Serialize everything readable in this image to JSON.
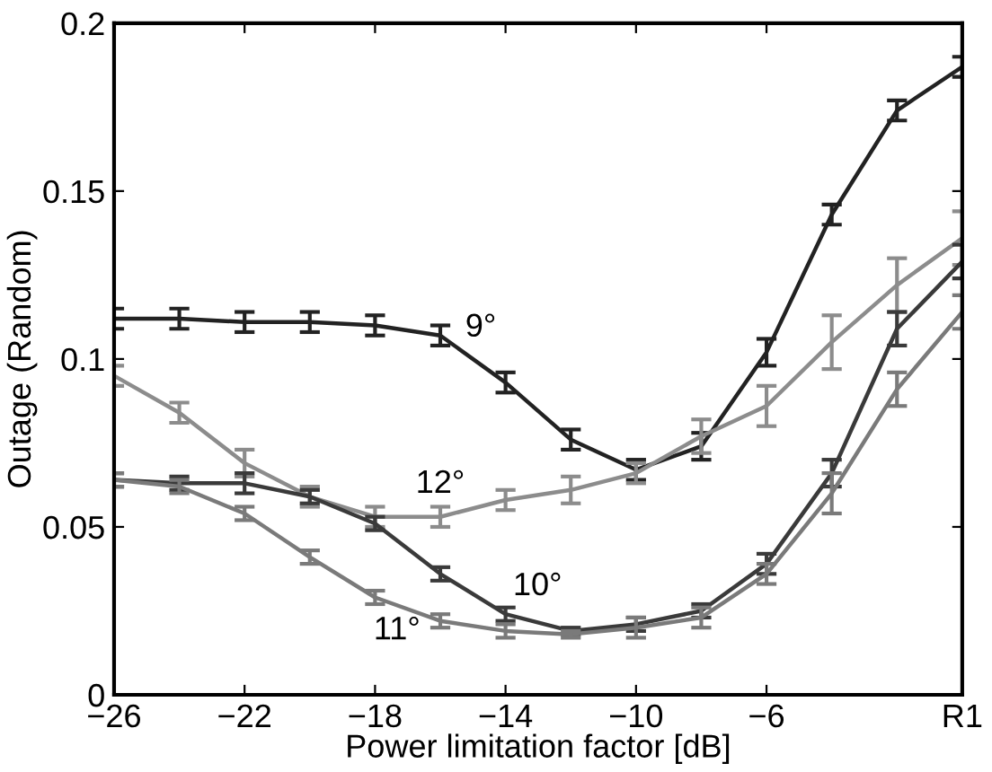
{
  "chart_data": {
    "type": "line",
    "xlabel": "Power limitation factor [dB]",
    "ylabel": "Outage (Random)",
    "x": [
      -26,
      -24,
      -22,
      -20,
      -18,
      -16,
      -14,
      -12,
      -10,
      -8,
      -6,
      -4,
      -2,
      0
    ],
    "xlim": [
      -26,
      0
    ],
    "xticks": [
      -26,
      -22,
      -18,
      -14,
      -10,
      -6,
      {
        "value": 0,
        "label": "R1"
      }
    ],
    "ylim": [
      0,
      0.2
    ],
    "yticks": [
      0,
      0.05,
      0.1,
      0.15,
      0.2
    ],
    "grid": false,
    "legend": false,
    "marker": "none",
    "line_style": "solid",
    "series": [
      {
        "name": "9°",
        "color": "#222222",
        "values": [
          0.112,
          0.112,
          0.111,
          0.111,
          0.11,
          0.107,
          0.093,
          0.076,
          0.067,
          0.074,
          0.102,
          0.143,
          0.174,
          0.187
        ],
        "errors": [
          0.003,
          0.003,
          0.003,
          0.003,
          0.003,
          0.003,
          0.003,
          0.003,
          0.003,
          0.004,
          0.004,
          0.003,
          0.003,
          0.003
        ]
      },
      {
        "name": "12°",
        "color": "#8c8c8c",
        "values": [
          0.095,
          0.084,
          0.069,
          0.059,
          0.053,
          0.053,
          0.058,
          0.061,
          0.066,
          0.077,
          0.086,
          0.105,
          0.122,
          0.136
        ],
        "errors": [
          0.003,
          0.003,
          0.004,
          0.003,
          0.003,
          0.003,
          0.003,
          0.004,
          0.003,
          0.005,
          0.006,
          0.008,
          0.008,
          0.008
        ]
      },
      {
        "name": "10°",
        "color": "#3a3a3a",
        "values": [
          0.064,
          0.063,
          0.063,
          0.059,
          0.051,
          0.036,
          0.024,
          0.019,
          0.021,
          0.025,
          0.039,
          0.066,
          0.109,
          0.129
        ],
        "errors": [
          0.002,
          0.002,
          0.003,
          0.002,
          0.002,
          0.002,
          0.002,
          0.001,
          0.002,
          0.002,
          0.003,
          0.004,
          0.005,
          0.005
        ]
      },
      {
        "name": "11°",
        "color": "#7a7a7a",
        "values": [
          0.064,
          0.062,
          0.054,
          0.041,
          0.029,
          0.022,
          0.019,
          0.018,
          0.02,
          0.023,
          0.036,
          0.06,
          0.091,
          0.114
        ],
        "errors": [
          0.002,
          0.002,
          0.002,
          0.002,
          0.002,
          0.002,
          0.002,
          0.001,
          0.003,
          0.003,
          0.003,
          0.006,
          0.005,
          0.005
        ]
      }
    ]
  }
}
